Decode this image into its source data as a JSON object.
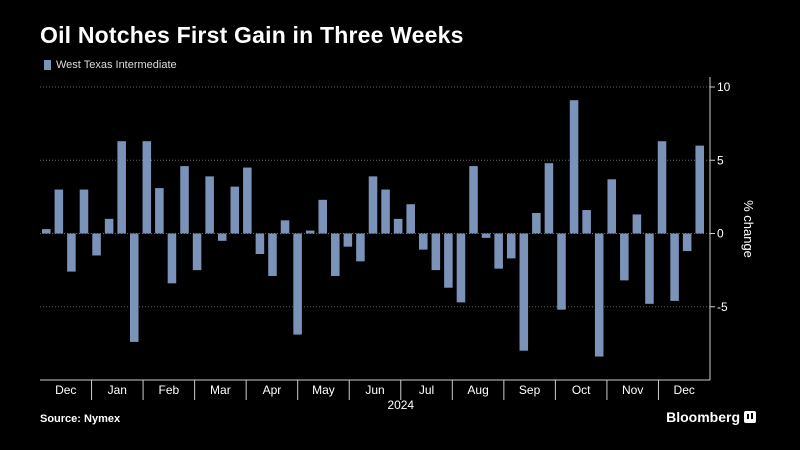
{
  "title": "Oil Notches First Gain in Three Weeks",
  "source": "Source: Nymex",
  "brand": "Bloomberg",
  "colors": {
    "bar": "#7b93b8",
    "grid": "#666666",
    "background": "#000000"
  },
  "chart_data": {
    "type": "bar",
    "legend": [
      "West Texas Intermediate"
    ],
    "ylabel": "% change",
    "ylim": [
      -10,
      10
    ],
    "yticks": [
      10,
      5,
      0,
      -5
    ],
    "y_axis_side": "right",
    "grid": true,
    "legend_position": "top-left",
    "x_month_labels": [
      "Dec",
      "Jan",
      "Feb",
      "Mar",
      "Apr",
      "May",
      "Jun",
      "Jul",
      "Aug",
      "Sep",
      "Oct",
      "Nov",
      "Dec"
    ],
    "x_year_label": "2024",
    "series": [
      {
        "name": "West Texas Intermediate",
        "values": [
          0.3,
          3.0,
          -2.6,
          3.0,
          -1.5,
          1.0,
          6.3,
          -7.4,
          6.3,
          3.1,
          -3.4,
          4.6,
          -2.5,
          3.9,
          -0.5,
          3.2,
          4.5,
          -1.4,
          -2.9,
          0.9,
          -6.9,
          0.2,
          2.3,
          -2.9,
          -0.9,
          -1.9,
          3.9,
          3.0,
          1.0,
          2.0,
          -1.1,
          -2.5,
          -3.7,
          -4.7,
          4.6,
          -0.3,
          -2.4,
          -1.7,
          -8.0,
          1.4,
          4.8,
          -5.2,
          9.1,
          1.6,
          -8.4,
          3.7,
          -3.2,
          1.3,
          -4.8,
          6.3,
          -4.6,
          -1.2,
          6.0
        ]
      }
    ]
  }
}
